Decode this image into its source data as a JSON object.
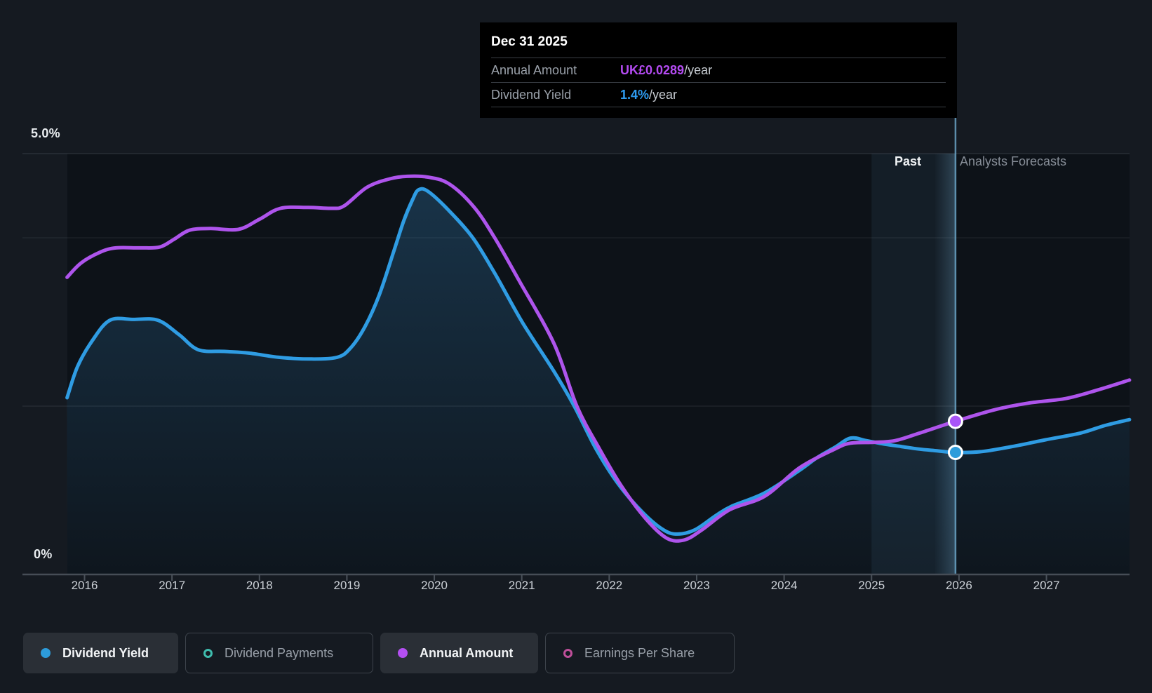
{
  "tooltip": {
    "title": "Dec 31 2025",
    "rows": [
      {
        "label": "Annual Amount",
        "value": "UK£0.0289",
        "suffix": "/year",
        "value_color": "#b44bf2"
      },
      {
        "label": "Dividend Yield",
        "value": "1.4%",
        "suffix": "/year",
        "value_color": "#2e9bf0"
      }
    ]
  },
  "labels": {
    "y_top": "5.0%",
    "y_bottom": "0%",
    "past": "Past",
    "forecast": "Analysts Forecasts"
  },
  "legend": {
    "items": [
      {
        "label": "Dividend Yield",
        "style": "filled",
        "color": "#2d9cdb",
        "active": true
      },
      {
        "label": "Dividend Payments",
        "style": "ring",
        "color": "#3fbdae",
        "active": false
      },
      {
        "label": "Annual Amount",
        "style": "filled",
        "color": "#b44ff2",
        "active": true
      },
      {
        "label": "Earnings Per Share",
        "style": "ring",
        "color": "#bf4f9a",
        "active": false
      }
    ]
  },
  "chart_data": {
    "type": "line",
    "title": "Dividend yield history and forecast",
    "x_axis": {
      "unit": "year",
      "range": [
        2015.8,
        2027.95
      ],
      "tick_labels": [
        "2016",
        "2017",
        "2018",
        "2019",
        "2020",
        "2021",
        "2022",
        "2023",
        "2024",
        "2025",
        "2026",
        "2027"
      ]
    },
    "y_axis": {
      "unit": "%",
      "range": [
        0,
        5
      ],
      "gridlines_pct": [
        0,
        2,
        4,
        5
      ],
      "top_label": "5.0%",
      "bottom_label": "0%"
    },
    "legend_position": "bottom",
    "past_region": {
      "from": 2025.0,
      "to": 2025.96,
      "bright_from": 2025.73
    },
    "today": {
      "x": 2025.96,
      "date": "Dec 31 2025"
    },
    "series": [
      {
        "name": "Dividend Yield",
        "color": "#2f9ce3",
        "area_fill": "#3a96d8",
        "unit": "%",
        "points": [
          [
            2015.8,
            2.1
          ],
          [
            2015.92,
            2.47
          ],
          [
            2016.09,
            2.78
          ],
          [
            2016.29,
            3.02
          ],
          [
            2016.56,
            3.03
          ],
          [
            2016.84,
            3.02
          ],
          [
            2017.08,
            2.85
          ],
          [
            2017.3,
            2.67
          ],
          [
            2017.6,
            2.65
          ],
          [
            2017.88,
            2.63
          ],
          [
            2018.22,
            2.58
          ],
          [
            2018.56,
            2.56
          ],
          [
            2018.89,
            2.58
          ],
          [
            2019.05,
            2.7
          ],
          [
            2019.21,
            2.95
          ],
          [
            2019.37,
            3.32
          ],
          [
            2019.53,
            3.82
          ],
          [
            2019.65,
            4.2
          ],
          [
            2019.75,
            4.45
          ],
          [
            2019.82,
            4.57
          ],
          [
            2019.93,
            4.55
          ],
          [
            2020.17,
            4.32
          ],
          [
            2020.44,
            4.0
          ],
          [
            2020.69,
            3.58
          ],
          [
            2021.01,
            2.99
          ],
          [
            2021.37,
            2.41
          ],
          [
            2021.6,
            2.0
          ],
          [
            2021.85,
            1.49
          ],
          [
            2022.1,
            1.08
          ],
          [
            2022.38,
            0.74
          ],
          [
            2022.62,
            0.53
          ],
          [
            2022.78,
            0.48
          ],
          [
            2022.98,
            0.53
          ],
          [
            2023.22,
            0.7
          ],
          [
            2023.4,
            0.81
          ],
          [
            2023.78,
            0.97
          ],
          [
            2024.18,
            1.24
          ],
          [
            2024.38,
            1.39
          ],
          [
            2024.58,
            1.51
          ],
          [
            2024.76,
            1.62
          ],
          [
            2024.94,
            1.59
          ],
          [
            2025.14,
            1.55
          ],
          [
            2025.34,
            1.52
          ],
          [
            2025.54,
            1.49
          ],
          [
            2025.74,
            1.47
          ],
          [
            2025.96,
            1.45
          ],
          [
            2026.26,
            1.46
          ],
          [
            2026.66,
            1.53
          ],
          [
            2026.99,
            1.6
          ],
          [
            2027.39,
            1.68
          ],
          [
            2027.67,
            1.77
          ],
          [
            2027.95,
            1.84
          ]
        ]
      },
      {
        "name": "Annual Amount",
        "color": "#ae54ec",
        "unit": "plotted on % axis, value in UK£",
        "points": [
          [
            2015.8,
            3.53
          ],
          [
            2015.96,
            3.7
          ],
          [
            2016.18,
            3.83
          ],
          [
            2016.36,
            3.88
          ],
          [
            2016.64,
            3.88
          ],
          [
            2016.86,
            3.89
          ],
          [
            2017.02,
            3.98
          ],
          [
            2017.2,
            4.09
          ],
          [
            2017.44,
            4.11
          ],
          [
            2017.76,
            4.1
          ],
          [
            2018.0,
            4.22
          ],
          [
            2018.24,
            4.35
          ],
          [
            2018.56,
            4.36
          ],
          [
            2018.83,
            4.35
          ],
          [
            2018.97,
            4.38
          ],
          [
            2019.23,
            4.6
          ],
          [
            2019.49,
            4.7
          ],
          [
            2019.69,
            4.73
          ],
          [
            2019.93,
            4.72
          ],
          [
            2020.17,
            4.64
          ],
          [
            2020.45,
            4.37
          ],
          [
            2020.69,
            4.0
          ],
          [
            2020.97,
            3.49
          ],
          [
            2021.37,
            2.74
          ],
          [
            2021.63,
            2.0
          ],
          [
            2021.89,
            1.49
          ],
          [
            2022.14,
            1.05
          ],
          [
            2022.42,
            0.66
          ],
          [
            2022.66,
            0.43
          ],
          [
            2022.86,
            0.41
          ],
          [
            2023.06,
            0.53
          ],
          [
            2023.38,
            0.77
          ],
          [
            2023.78,
            0.93
          ],
          [
            2024.18,
            1.27
          ],
          [
            2024.58,
            1.49
          ],
          [
            2024.76,
            1.56
          ],
          [
            2025.03,
            1.57
          ],
          [
            2025.27,
            1.59
          ],
          [
            2025.55,
            1.68
          ],
          [
            2025.96,
            1.82
          ],
          [
            2026.42,
            1.96
          ],
          [
            2026.82,
            2.04
          ],
          [
            2027.22,
            2.09
          ],
          [
            2027.58,
            2.19
          ],
          [
            2027.95,
            2.31
          ]
        ]
      }
    ],
    "markers": [
      {
        "series": "Annual Amount",
        "x": 2025.96,
        "y": 1.82,
        "color": "#a855f7",
        "tooltip_value": "UK£0.0289/year"
      },
      {
        "series": "Dividend Yield",
        "x": 2025.96,
        "y": 1.45,
        "color": "#2d9cdb",
        "tooltip_value": "1.4%/year"
      }
    ]
  }
}
